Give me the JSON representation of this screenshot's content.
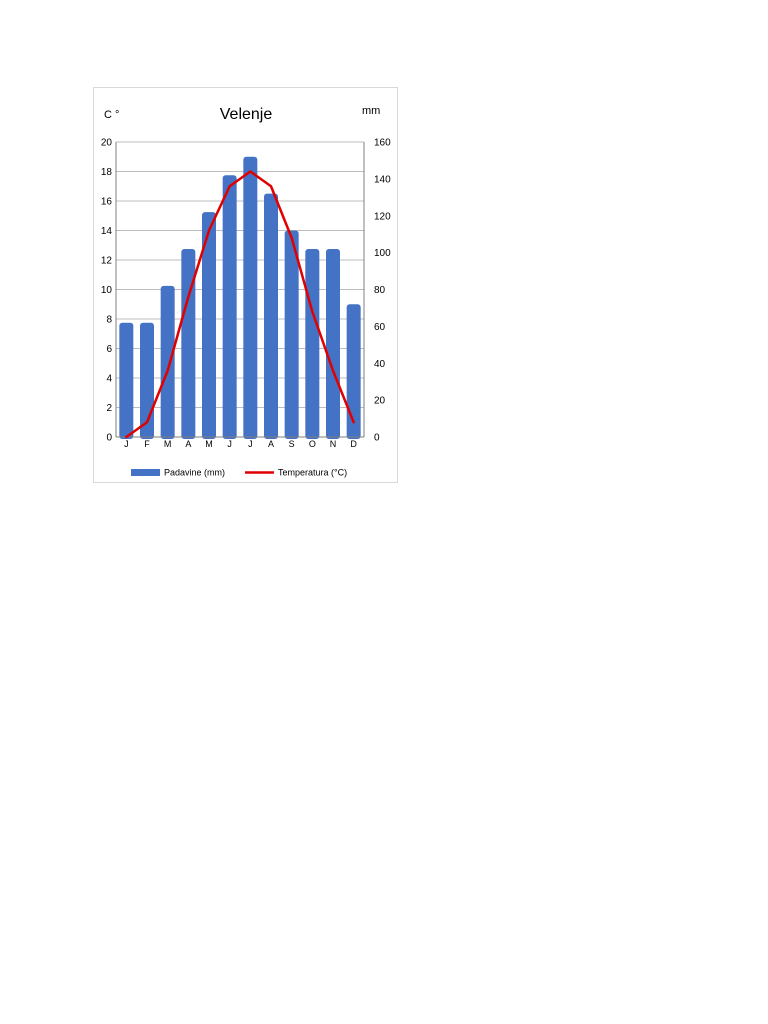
{
  "chart_data": {
    "type": "bar",
    "title": "Velenje",
    "y_left_unit": "C °",
    "y_right_unit": "mm",
    "categories": [
      "J",
      "F",
      "M",
      "A",
      "M",
      "J",
      "J",
      "A",
      "S",
      "O",
      "N",
      "D"
    ],
    "y_left_ticks": [
      "0",
      "2",
      "4",
      "6",
      "8",
      "10",
      "12",
      "14",
      "16",
      "18",
      "20"
    ],
    "y_right_ticks": [
      "0",
      "20",
      "40",
      "60",
      "80",
      "100",
      "120",
      "140",
      "160"
    ],
    "y_left_range": [
      0,
      20
    ],
    "y_right_range": [
      0,
      160
    ],
    "grid": true,
    "legend_position": "bottom",
    "series": [
      {
        "name": "Padavine (mm)",
        "kind": "bar",
        "axis": "right",
        "color": "#4472c4",
        "values": [
          62,
          62,
          82,
          102,
          122,
          142,
          152,
          132,
          112,
          102,
          102,
          72
        ]
      },
      {
        "name": "Temperatura (°C)",
        "kind": "line",
        "axis": "left",
        "color": "#e00000",
        "values": [
          0,
          1,
          4.5,
          9.5,
          14,
          17,
          18,
          17,
          13.5,
          8.5,
          4.5,
          1
        ]
      }
    ]
  }
}
